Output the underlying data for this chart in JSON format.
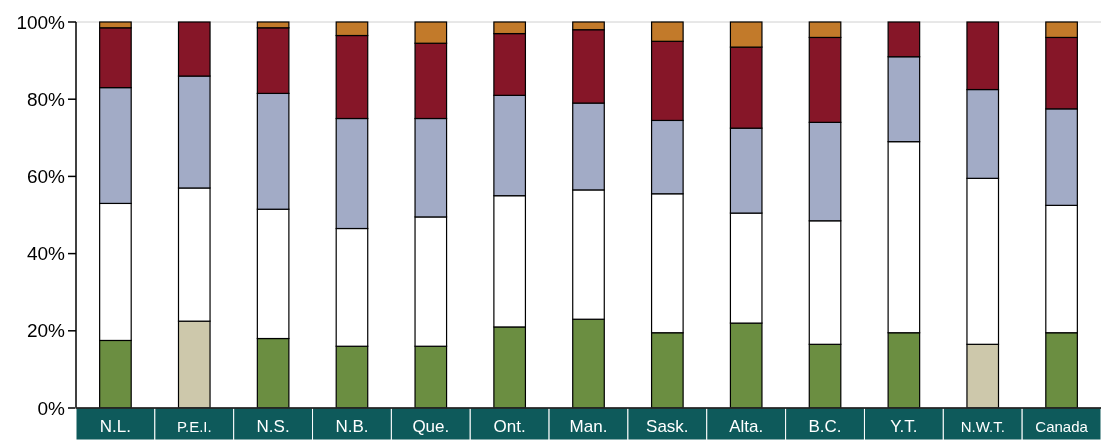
{
  "chart_data": {
    "type": "bar",
    "stacked": true,
    "categories": [
      "N.L.",
      "P.E.I.",
      "N.S.",
      "N.B.",
      "Que.",
      "Ont.",
      "Man.",
      "Sask.",
      "Alta.",
      "B.C.",
      "Y.T.",
      "N.W.T.",
      "Canada"
    ],
    "series": [
      {
        "colors": [
          "#6b8e41",
          "#cdc8ab",
          "#6b8e41",
          "#6b8e41",
          "#6b8e41",
          "#6b8e41",
          "#6b8e41",
          "#6b8e41",
          "#6b8e41",
          "#6b8e41",
          "#6b8e41",
          "#cdc8ab",
          "#6b8e41"
        ],
        "values": [
          17.5,
          22.5,
          18,
          16,
          16,
          21,
          23,
          19.5,
          22,
          16.5,
          19.5,
          16.5,
          19.5
        ]
      },
      {
        "color": "#ffffff",
        "values": [
          35.5,
          34.5,
          33.5,
          30.5,
          33.5,
          34,
          33.5,
          36,
          28.5,
          32,
          49.5,
          43,
          33
        ]
      },
      {
        "color": "#a2abc6",
        "values": [
          30,
          29,
          30,
          28.5,
          25.5,
          26,
          22.5,
          19,
          22,
          25.5,
          22,
          23,
          25
        ]
      },
      {
        "color": "#861628",
        "values": [
          15.5,
          14,
          17,
          21.5,
          19.5,
          16,
          19,
          20.5,
          21,
          22,
          9,
          17.5,
          18.5
        ]
      },
      {
        "color": "#c27a2a",
        "values": [
          1.5,
          0,
          1.5,
          3.5,
          5.5,
          3,
          2,
          5,
          6.5,
          4,
          0,
          0,
          4
        ]
      }
    ],
    "ylim": [
      0,
      100
    ],
    "yticks": [
      {
        "value": 0,
        "label": "0%"
      },
      {
        "value": 20,
        "label": "20%"
      },
      {
        "value": 40,
        "label": "40%"
      },
      {
        "value": 60,
        "label": "60%"
      },
      {
        "value": 80,
        "label": "80%"
      },
      {
        "value": 100,
        "label": "100%"
      }
    ]
  }
}
